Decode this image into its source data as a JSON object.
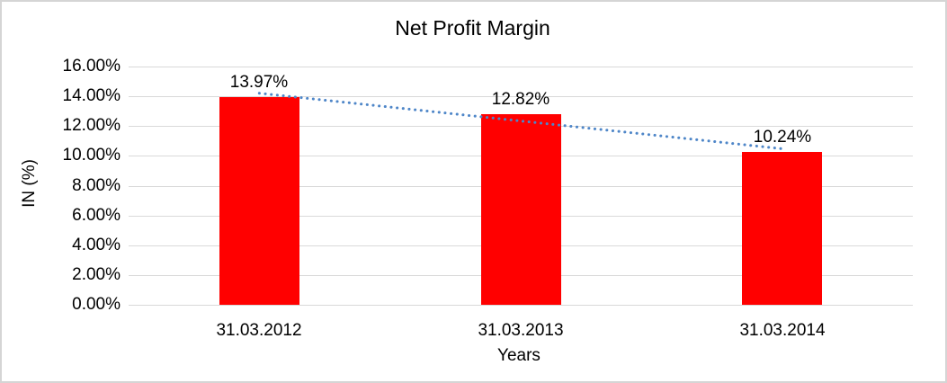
{
  "chart_data": {
    "type": "bar",
    "title": "Net Profit Margin",
    "categories": [
      "31.03.2012",
      "31.03.2013",
      "31.03.2014"
    ],
    "values": [
      13.97,
      12.82,
      10.24
    ],
    "data_labels": [
      "13.97%",
      "12.82%",
      "10.24%"
    ],
    "xlabel": "Years",
    "ylabel": "IN (%)",
    "ylim": [
      0,
      16
    ],
    "ytick_step": 2,
    "ytick_labels": [
      "0.00%",
      "2.00%",
      "4.00%",
      "6.00%",
      "8.00%",
      "10.00%",
      "12.00%",
      "14.00%",
      "16.00%"
    ],
    "grid": "horizontal",
    "legend": "none",
    "trendline": {
      "type": "linear",
      "style": "dotted",
      "fit_of_series": "values"
    },
    "colors": {
      "bar": "#ff0000",
      "trendline": "#4e86c8",
      "gridline": "#d9d9d9",
      "text": "#000000",
      "border": "#d5d5d5",
      "background": "#ffffff"
    }
  }
}
